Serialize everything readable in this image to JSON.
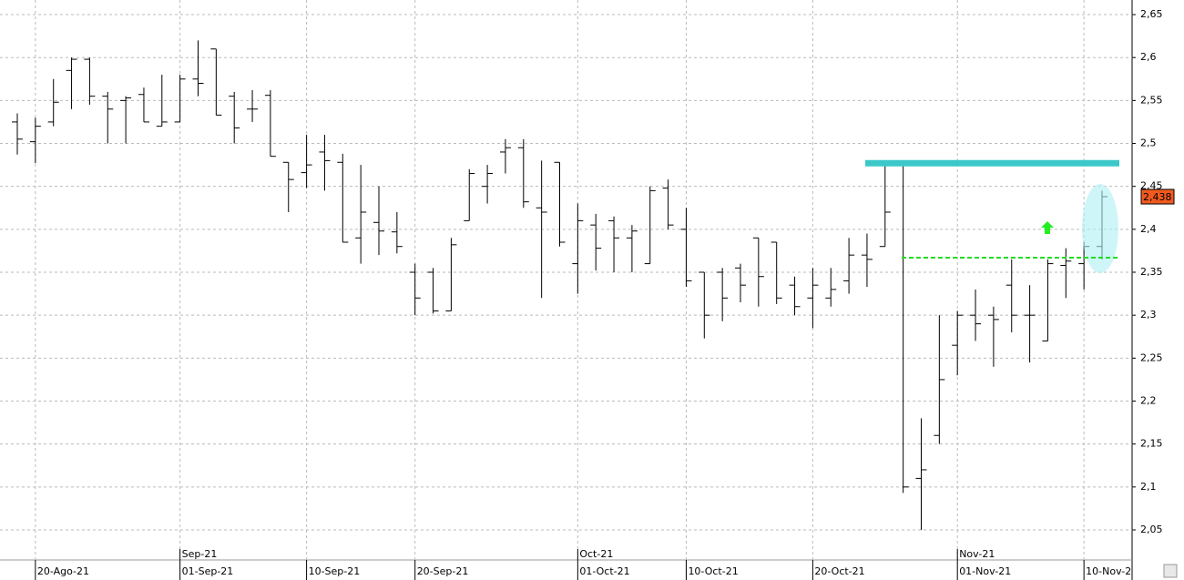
{
  "chart_data": {
    "type": "ohlc",
    "categories": [
      null,
      "20-Ago-21",
      null,
      null,
      null,
      null,
      null,
      null,
      null,
      "01-Sep-21",
      null,
      null,
      null,
      null,
      null,
      null,
      "10-Sep-21",
      null,
      null,
      null,
      null,
      null,
      "20-Sep-21",
      null,
      null,
      null,
      null,
      null,
      null,
      null,
      null,
      "01-Oct-21",
      null,
      null,
      null,
      null,
      null,
      "10-Oct-21",
      null,
      null,
      null,
      null,
      null,
      null,
      "20-Oct-21",
      null,
      null,
      null,
      null,
      null,
      null,
      null,
      "01-Nov-21",
      null,
      null,
      null,
      null,
      null,
      null,
      "10-Nov-2",
      null
    ],
    "months": [
      null,
      null,
      null,
      null,
      null,
      null,
      null,
      null,
      null,
      "Sep-21",
      null,
      null,
      null,
      null,
      null,
      null,
      null,
      null,
      null,
      null,
      null,
      null,
      null,
      null,
      null,
      null,
      null,
      null,
      null,
      null,
      null,
      "Oct-21",
      null,
      null,
      null,
      null,
      null,
      null,
      null,
      null,
      null,
      null,
      null,
      null,
      null,
      null,
      null,
      null,
      null,
      null,
      null,
      null,
      "Nov-21",
      null,
      null,
      null,
      null,
      null,
      null,
      null,
      null
    ],
    "open": [
      2.525,
      2.502,
      2.525,
      2.585,
      2.598,
      2.555,
      2.55,
      2.557,
      2.52,
      2.525,
      2.575,
      2.61,
      2.555,
      2.54,
      2.556,
      2.478,
      2.466,
      2.49,
      2.478,
      2.39,
      2.408,
      2.397,
      2.35,
      2.35,
      2.305,
      2.41,
      2.45,
      2.49,
      2.495,
      2.425,
      2.478,
      2.36,
      2.405,
      2.41,
      2.39,
      2.36,
      2.448,
      2.4,
      2.35,
      2.35,
      2.355,
      2.39,
      2.385,
      2.335,
      2.32,
      2.32,
      2.34,
      2.37,
      2.38,
      2.478,
      2.11,
      2.16,
      2.265,
      2.3,
      2.3,
      2.335,
      2.3,
      2.27,
      2.358,
      2.36,
      2.38
    ],
    "high": [
      2.535,
      2.53,
      2.575,
      2.6,
      2.6,
      2.56,
      2.555,
      2.565,
      2.58,
      2.58,
      2.62,
      2.61,
      2.56,
      2.562,
      2.562,
      2.478,
      2.51,
      2.51,
      2.488,
      2.475,
      2.45,
      2.42,
      2.36,
      2.355,
      2.39,
      2.47,
      2.475,
      2.505,
      2.505,
      2.48,
      2.478,
      2.43,
      2.418,
      2.415,
      2.405,
      2.45,
      2.458,
      2.425,
      2.35,
      2.355,
      2.36,
      2.39,
      2.385,
      2.345,
      2.355,
      2.355,
      2.39,
      2.395,
      2.475,
      2.478,
      2.18,
      2.3,
      2.305,
      2.33,
      2.31,
      2.365,
      2.335,
      2.365,
      2.378,
      2.385,
      2.445
    ],
    "low": [
      2.487,
      2.477,
      2.52,
      2.54,
      2.545,
      2.5,
      2.5,
      2.525,
      2.52,
      2.525,
      2.555,
      2.533,
      2.5,
      2.525,
      2.485,
      2.42,
      2.448,
      2.445,
      2.385,
      2.36,
      2.37,
      2.372,
      2.3,
      2.302,
      2.305,
      2.41,
      2.43,
      2.465,
      2.425,
      2.32,
      2.38,
      2.325,
      2.352,
      2.35,
      2.35,
      2.36,
      2.4,
      2.333,
      2.273,
      2.293,
      2.315,
      2.31,
      2.313,
      2.3,
      2.285,
      2.31,
      2.325,
      2.333,
      2.38,
      2.093,
      2.05,
      2.15,
      2.23,
      2.27,
      2.24,
      2.28,
      2.245,
      2.27,
      2.32,
      2.33,
      2.365
    ],
    "close": [
      2.505,
      2.52,
      2.548,
      2.598,
      2.555,
      2.54,
      2.553,
      2.525,
      2.525,
      2.575,
      2.57,
      2.533,
      2.518,
      2.54,
      2.485,
      2.458,
      2.475,
      2.48,
      2.385,
      2.42,
      2.398,
      2.38,
      2.32,
      2.305,
      2.382,
      2.465,
      2.465,
      2.495,
      2.432,
      2.42,
      2.385,
      2.41,
      2.378,
      2.39,
      2.398,
      2.445,
      2.405,
      2.34,
      2.3,
      2.32,
      2.335,
      2.345,
      2.32,
      2.31,
      2.335,
      2.33,
      2.37,
      2.365,
      2.42,
      2.1,
      2.12,
      2.225,
      2.3,
      2.29,
      2.295,
      2.3,
      2.3,
      2.36,
      2.363,
      2.38,
      2.438
    ],
    "color": "#000000",
    "ylim": [
      2.015,
      2.667
    ],
    "yticks": [
      {
        "value": 2.05,
        "label": "2,05"
      },
      {
        "value": 2.1,
        "label": "2,1"
      },
      {
        "value": 2.15,
        "label": "2,15"
      },
      {
        "value": 2.2,
        "label": "2,2"
      },
      {
        "value": 2.25,
        "label": "2,25"
      },
      {
        "value": 2.3,
        "label": "2,3"
      },
      {
        "value": 2.35,
        "label": "2,35"
      },
      {
        "value": 2.4,
        "label": "2,4"
      },
      {
        "value": 2.45,
        "label": "2,45"
      },
      {
        "value": 2.5,
        "label": "2,5"
      },
      {
        "value": 2.55,
        "label": "2,55"
      },
      {
        "value": 2.6,
        "label": "2,6"
      },
      {
        "value": 2.65,
        "label": "2,65"
      }
    ],
    "grid": true,
    "resistance": 2.477,
    "resistance_color": "#3cc8c8",
    "support": 2.367,
    "support_color": "#22dd22",
    "last_price_label": "2,438",
    "last_price_color": "#f05a1e"
  }
}
